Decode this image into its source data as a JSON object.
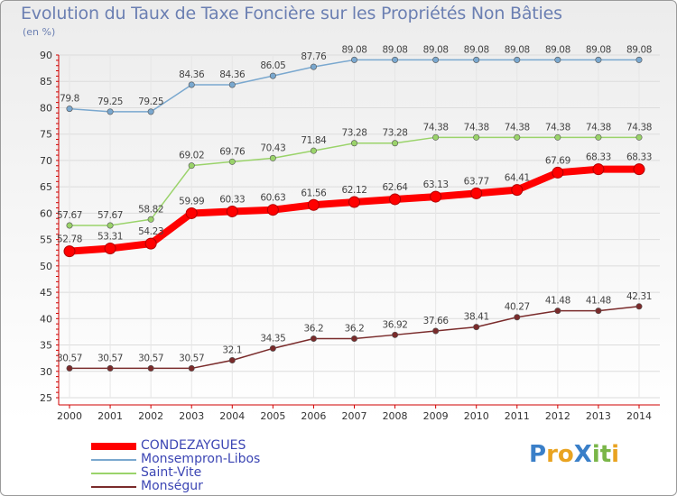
{
  "title": "Evolution du Taux de Taxe Foncière sur les Propriétés Non Bâties",
  "unit_label": "(en %)",
  "logo": {
    "text": "ProXiti",
    "letter_colors": [
      "#3a7fc8",
      "#e9a320",
      "#e9a320",
      "#3a7fc8",
      "#7ab648",
      "#7ab648",
      "#e9a320"
    ]
  },
  "chart_data": {
    "type": "line",
    "title": "Evolution du Taux de Taxe Foncière sur les Propriétés Non Bâties",
    "ylabel": "(en %)",
    "xlabel": "",
    "ylim": [
      25,
      90
    ],
    "yticks": [
      "25",
      "30",
      "35",
      "40",
      "45",
      "50",
      "55",
      "60",
      "65",
      "70",
      "75",
      "80",
      "85",
      "90"
    ],
    "categories": [
      "2000",
      "2001",
      "2002",
      "2003",
      "2004",
      "2005",
      "2006",
      "2007",
      "2008",
      "2009",
      "2010",
      "2011",
      "2012",
      "2013",
      "2014"
    ],
    "grid": "horizontal",
    "legend_position": "bottom-left",
    "series": [
      {
        "name": "CONDEZAYGUES",
        "color": "#ff0000",
        "values": [
          52.78,
          53.31,
          54.23,
          59.99,
          60.33,
          60.63,
          61.56,
          62.12,
          62.64,
          63.13,
          63.77,
          64.41,
          67.69,
          68.33,
          68.33
        ],
        "labels": [
          "52.78",
          "53.31",
          "54.23",
          "59.99",
          "60.33",
          "60.63",
          "61.56",
          "62.12",
          "62.64",
          "63.13",
          "63.77",
          "64.41",
          "67.69",
          "68.33",
          "68.33"
        ]
      },
      {
        "name": "Monsempron-Libos",
        "color": "#7aa8cf",
        "values": [
          79.8,
          79.25,
          79.25,
          84.36,
          84.36,
          86.05,
          87.76,
          89.08,
          89.08,
          89.08,
          89.08,
          89.08,
          89.08,
          89.08,
          89.08
        ],
        "labels": [
          "79.8",
          "79.25",
          "79.25",
          "84.36",
          "84.36",
          "86.05",
          "87.76",
          "89.08",
          "89.08",
          "89.08",
          "89.08",
          "89.08",
          "89.08",
          "89.08",
          "89.08"
        ]
      },
      {
        "name": "Saint-Vite",
        "color": "#9ad36a",
        "values": [
          57.67,
          57.67,
          58.82,
          69.02,
          69.76,
          70.43,
          71.84,
          73.28,
          73.28,
          74.38,
          74.38,
          74.38,
          74.38,
          74.38,
          74.38
        ],
        "labels": [
          "57.67",
          "57.67",
          "58.82",
          "69.02",
          "69.76",
          "70.43",
          "71.84",
          "73.28",
          "73.28",
          "74.38",
          "74.38",
          "74.38",
          "74.38",
          "74.38",
          "74.38"
        ]
      },
      {
        "name": "Monségur",
        "color": "#7a2b2b",
        "values": [
          30.57,
          30.57,
          30.57,
          30.57,
          32.1,
          34.35,
          36.2,
          36.2,
          36.92,
          37.66,
          38.41,
          40.27,
          41.48,
          41.48,
          42.31
        ],
        "labels": [
          "30.57",
          "30.57",
          "30.57",
          "30.57",
          "32.1",
          "34.35",
          "36.2",
          "36.2",
          "36.92",
          "37.66",
          "38.41",
          "40.27",
          "41.48",
          "41.48",
          "42.31"
        ]
      }
    ]
  }
}
